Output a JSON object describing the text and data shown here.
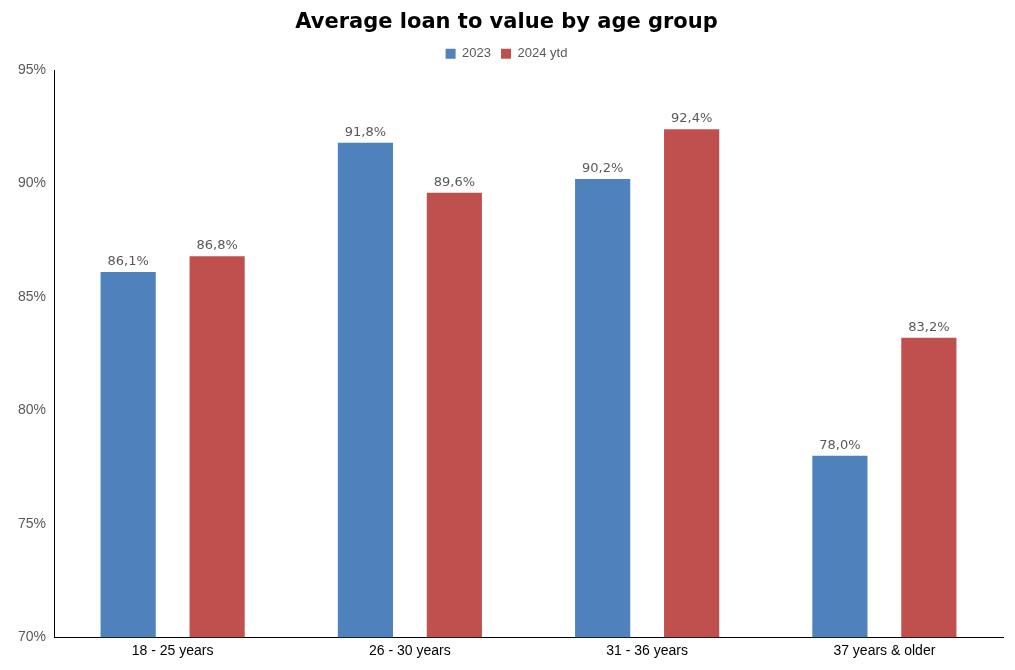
{
  "chart_data": {
    "type": "bar",
    "title": "Average loan to value by age group",
    "categories": [
      "18 - 25 years",
      "26 - 30 years",
      "31 - 36 years",
      "37 years & older"
    ],
    "series": [
      {
        "name": "2023",
        "color": "#4f81bd",
        "values": [
          86.1,
          91.8,
          90.2,
          78.0
        ],
        "value_labels": [
          "86,1%",
          "91,8%",
          "90,2%",
          "78,0%"
        ]
      },
      {
        "name": "2024 ytd",
        "color": "#c0504d",
        "values": [
          86.8,
          89.6,
          92.4,
          83.2
        ],
        "value_labels": [
          "86,8%",
          "89,6%",
          "92,4%",
          "83,2%"
        ]
      }
    ],
    "ylim": [
      70,
      95
    ],
    "yticks": [
      {
        "value": 70,
        "label": "70%"
      },
      {
        "value": 75,
        "label": "75%"
      },
      {
        "value": 80,
        "label": "80%"
      },
      {
        "value": 85,
        "label": "85%"
      },
      {
        "value": 90,
        "label": "90%"
      },
      {
        "value": 95,
        "label": "95%"
      }
    ],
    "grid": false,
    "legend": "top"
  }
}
